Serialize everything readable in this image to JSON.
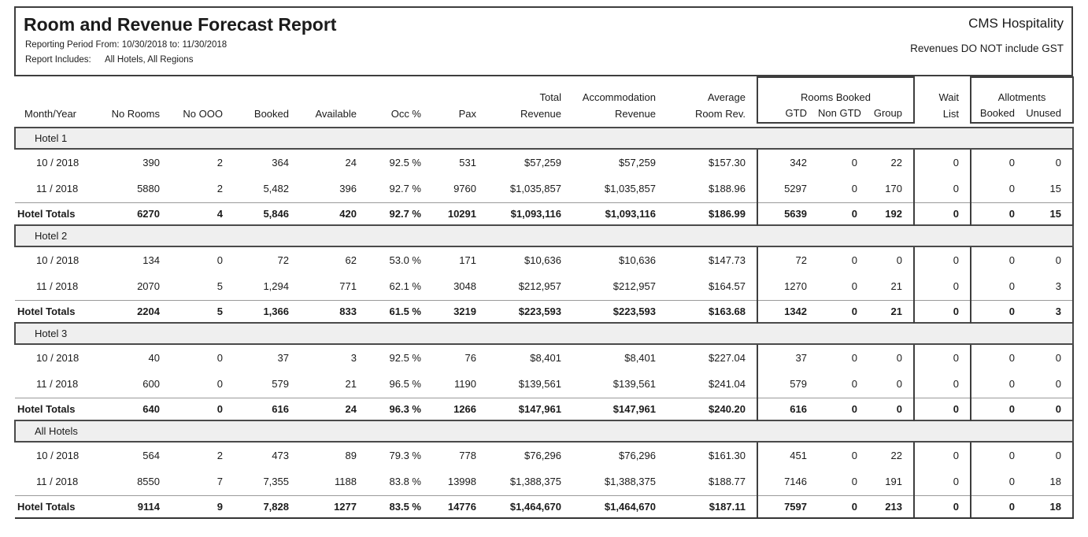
{
  "header": {
    "title": "Room and Revenue Forecast Report",
    "reporting_period": "Reporting Period From: 10/30/2018 to: 11/30/2018",
    "report_includes_label": "Report Includes:",
    "report_includes_value": "All Hotels, All Regions",
    "company": "CMS Hospitality",
    "gst_note": "Revenues DO NOT include GST"
  },
  "table": {
    "columns": {
      "row1": {
        "total": "Total",
        "accommodation": "Accommodation",
        "average": "Average",
        "rooms_booked": "Rooms Booked",
        "wait": "Wait",
        "allotments": "Allotments"
      },
      "row2": {
        "month_year": "Month/Year",
        "no_rooms": "No Rooms",
        "no_ooo": "No OOO",
        "booked": "Booked",
        "available": "Available",
        "occ": "Occ %",
        "pax": "Pax",
        "revenue_total": "Revenue",
        "revenue_accom": "Revenue",
        "room_rev": "Room Rev.",
        "gtd": "GTD",
        "non_gtd": "Non GTD",
        "group": "Group",
        "list": "List",
        "allot_booked": "Booked",
        "allot_unused": "Unused"
      }
    },
    "sections": [
      {
        "name": "Hotel 1",
        "rows": [
          [
            "10 / 2018",
            "390",
            "2",
            "364",
            "24",
            "92.5 %",
            "531",
            "$57,259",
            "$57,259",
            "$157.30",
            "342",
            "0",
            "22",
            "0",
            "0",
            "0"
          ],
          [
            "11 / 2018",
            "5880",
            "2",
            "5,482",
            "396",
            "92.7 %",
            "9760",
            "$1,035,857",
            "$1,035,857",
            "$188.96",
            "5297",
            "0",
            "170",
            "0",
            "0",
            "15"
          ]
        ],
        "totals": [
          "Hotel Totals",
          "6270",
          "4",
          "5,846",
          "420",
          "92.7 %",
          "10291",
          "$1,093,116",
          "$1,093,116",
          "$186.99",
          "5639",
          "0",
          "192",
          "0",
          "0",
          "15"
        ]
      },
      {
        "name": "Hotel 2",
        "rows": [
          [
            "10 / 2018",
            "134",
            "0",
            "72",
            "62",
            "53.0 %",
            "171",
            "$10,636",
            "$10,636",
            "$147.73",
            "72",
            "0",
            "0",
            "0",
            "0",
            "0"
          ],
          [
            "11 / 2018",
            "2070",
            "5",
            "1,294",
            "771",
            "62.1 %",
            "3048",
            "$212,957",
            "$212,957",
            "$164.57",
            "1270",
            "0",
            "21",
            "0",
            "0",
            "3"
          ]
        ],
        "totals": [
          "Hotel Totals",
          "2204",
          "5",
          "1,366",
          "833",
          "61.5 %",
          "3219",
          "$223,593",
          "$223,593",
          "$163.68",
          "1342",
          "0",
          "21",
          "0",
          "0",
          "3"
        ]
      },
      {
        "name": "Hotel 3",
        "rows": [
          [
            "10 / 2018",
            "40",
            "0",
            "37",
            "3",
            "92.5 %",
            "76",
            "$8,401",
            "$8,401",
            "$227.04",
            "37",
            "0",
            "0",
            "0",
            "0",
            "0"
          ],
          [
            "11 / 2018",
            "600",
            "0",
            "579",
            "21",
            "96.5 %",
            "1190",
            "$139,561",
            "$139,561",
            "$241.04",
            "579",
            "0",
            "0",
            "0",
            "0",
            "0"
          ]
        ],
        "totals": [
          "Hotel Totals",
          "640",
          "0",
          "616",
          "24",
          "96.3 %",
          "1266",
          "$147,961",
          "$147,961",
          "$240.20",
          "616",
          "0",
          "0",
          "0",
          "0",
          "0"
        ]
      },
      {
        "name": "All Hotels",
        "rows": [
          [
            "10 / 2018",
            "564",
            "2",
            "473",
            "89",
            "79.3 %",
            "778",
            "$76,296",
            "$76,296",
            "$161.30",
            "451",
            "0",
            "22",
            "0",
            "0",
            "0"
          ],
          [
            "11 / 2018",
            "8550",
            "7",
            "7,355",
            "1188",
            "83.8 %",
            "13998",
            "$1,388,375",
            "$1,388,375",
            "$188.77",
            "7146",
            "0",
            "191",
            "0",
            "0",
            "18"
          ]
        ],
        "totals": [
          "Hotel Totals",
          "9114",
          "9",
          "7,828",
          "1277",
          "83.5 %",
          "14776",
          "$1,464,670",
          "$1,464,670",
          "$187.11",
          "7597",
          "0",
          "213",
          "0",
          "0",
          "18"
        ]
      }
    ]
  }
}
